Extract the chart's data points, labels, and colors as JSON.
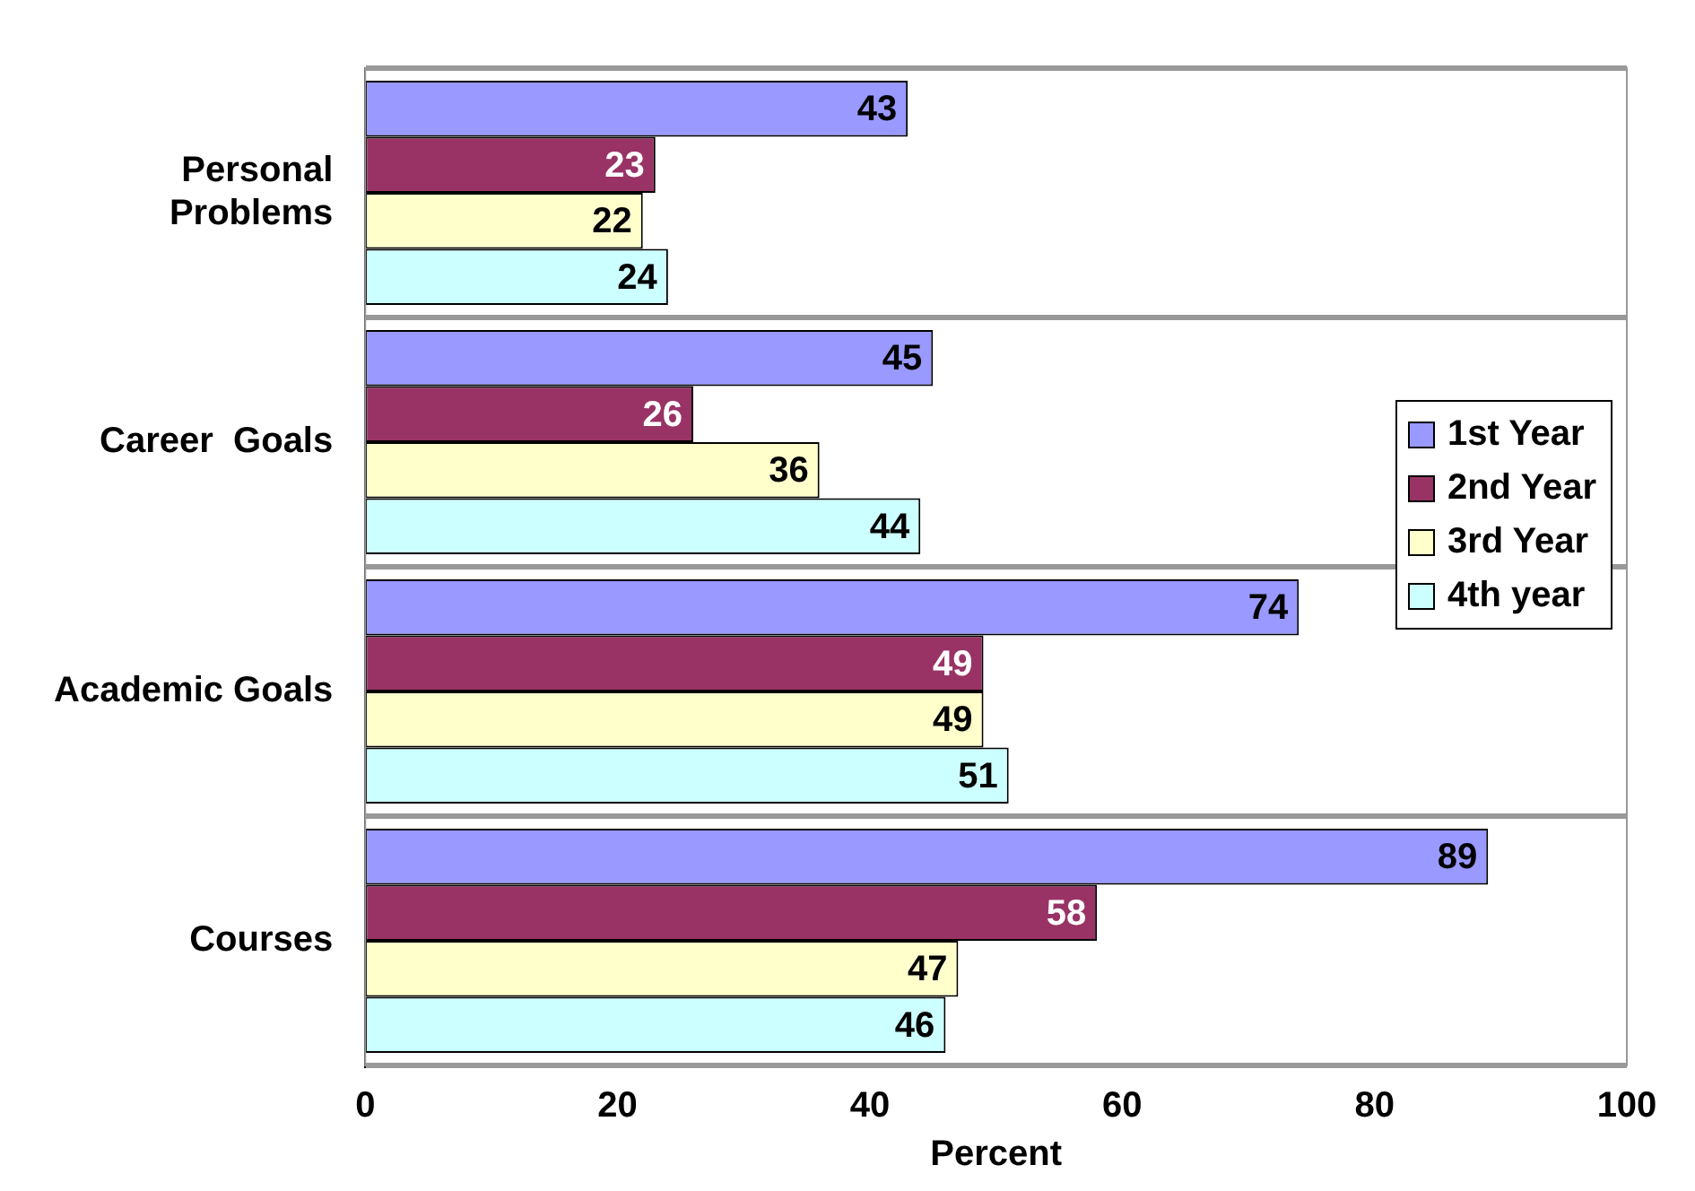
{
  "chart_data": {
    "type": "bar",
    "orientation": "horizontal",
    "xlabel": "Percent",
    "categories": [
      "Personal Problems",
      "Career  Goals",
      "Academic Goals",
      "Courses"
    ],
    "series": [
      {
        "name": "1st Year",
        "color": "#9999ff",
        "values": [
          43,
          45,
          74,
          89
        ]
      },
      {
        "name": "2nd Year",
        "color": "#993366",
        "values": [
          23,
          26,
          49,
          58
        ]
      },
      {
        "name": "3rd Year",
        "color": "#ffffcc",
        "values": [
          22,
          36,
          49,
          47
        ]
      },
      {
        "name": "4th year",
        "color": "#ccffff",
        "values": [
          24,
          44,
          51,
          46
        ]
      }
    ],
    "xlim": [
      0,
      100
    ],
    "xticks": [
      0,
      20,
      40,
      60,
      80,
      100
    ],
    "grid": "y",
    "legend": "right",
    "data_labels": true
  }
}
